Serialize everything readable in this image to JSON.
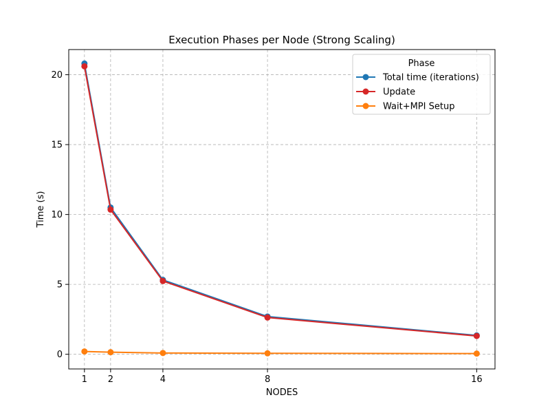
{
  "chart_data": {
    "type": "line",
    "title": "Execution Phases per Node (Strong Scaling)",
    "xlabel": "NODES",
    "ylabel": "Time (s)",
    "x": [
      1,
      2,
      4,
      8,
      16
    ],
    "x_ticks": [
      1,
      2,
      4,
      8,
      16
    ],
    "y_ticks": [
      0,
      5,
      10,
      15,
      20
    ],
    "xlim": [
      0.4,
      16.7
    ],
    "ylim": [
      -1.05,
      21.8
    ],
    "grid": true,
    "legend": {
      "title": "Phase",
      "placement": "top-right"
    },
    "series": [
      {
        "name": "Total time (iterations)",
        "color": "#1f77b4",
        "values": [
          20.8,
          10.5,
          5.32,
          2.7,
          1.35
        ]
      },
      {
        "name": "Update",
        "color": "#d62728",
        "values": [
          20.6,
          10.35,
          5.24,
          2.63,
          1.31
        ]
      },
      {
        "name": "Wait+MPI Setup",
        "color": "#ff7f0e",
        "values": [
          0.2,
          0.15,
          0.09,
          0.07,
          0.05
        ]
      }
    ]
  }
}
